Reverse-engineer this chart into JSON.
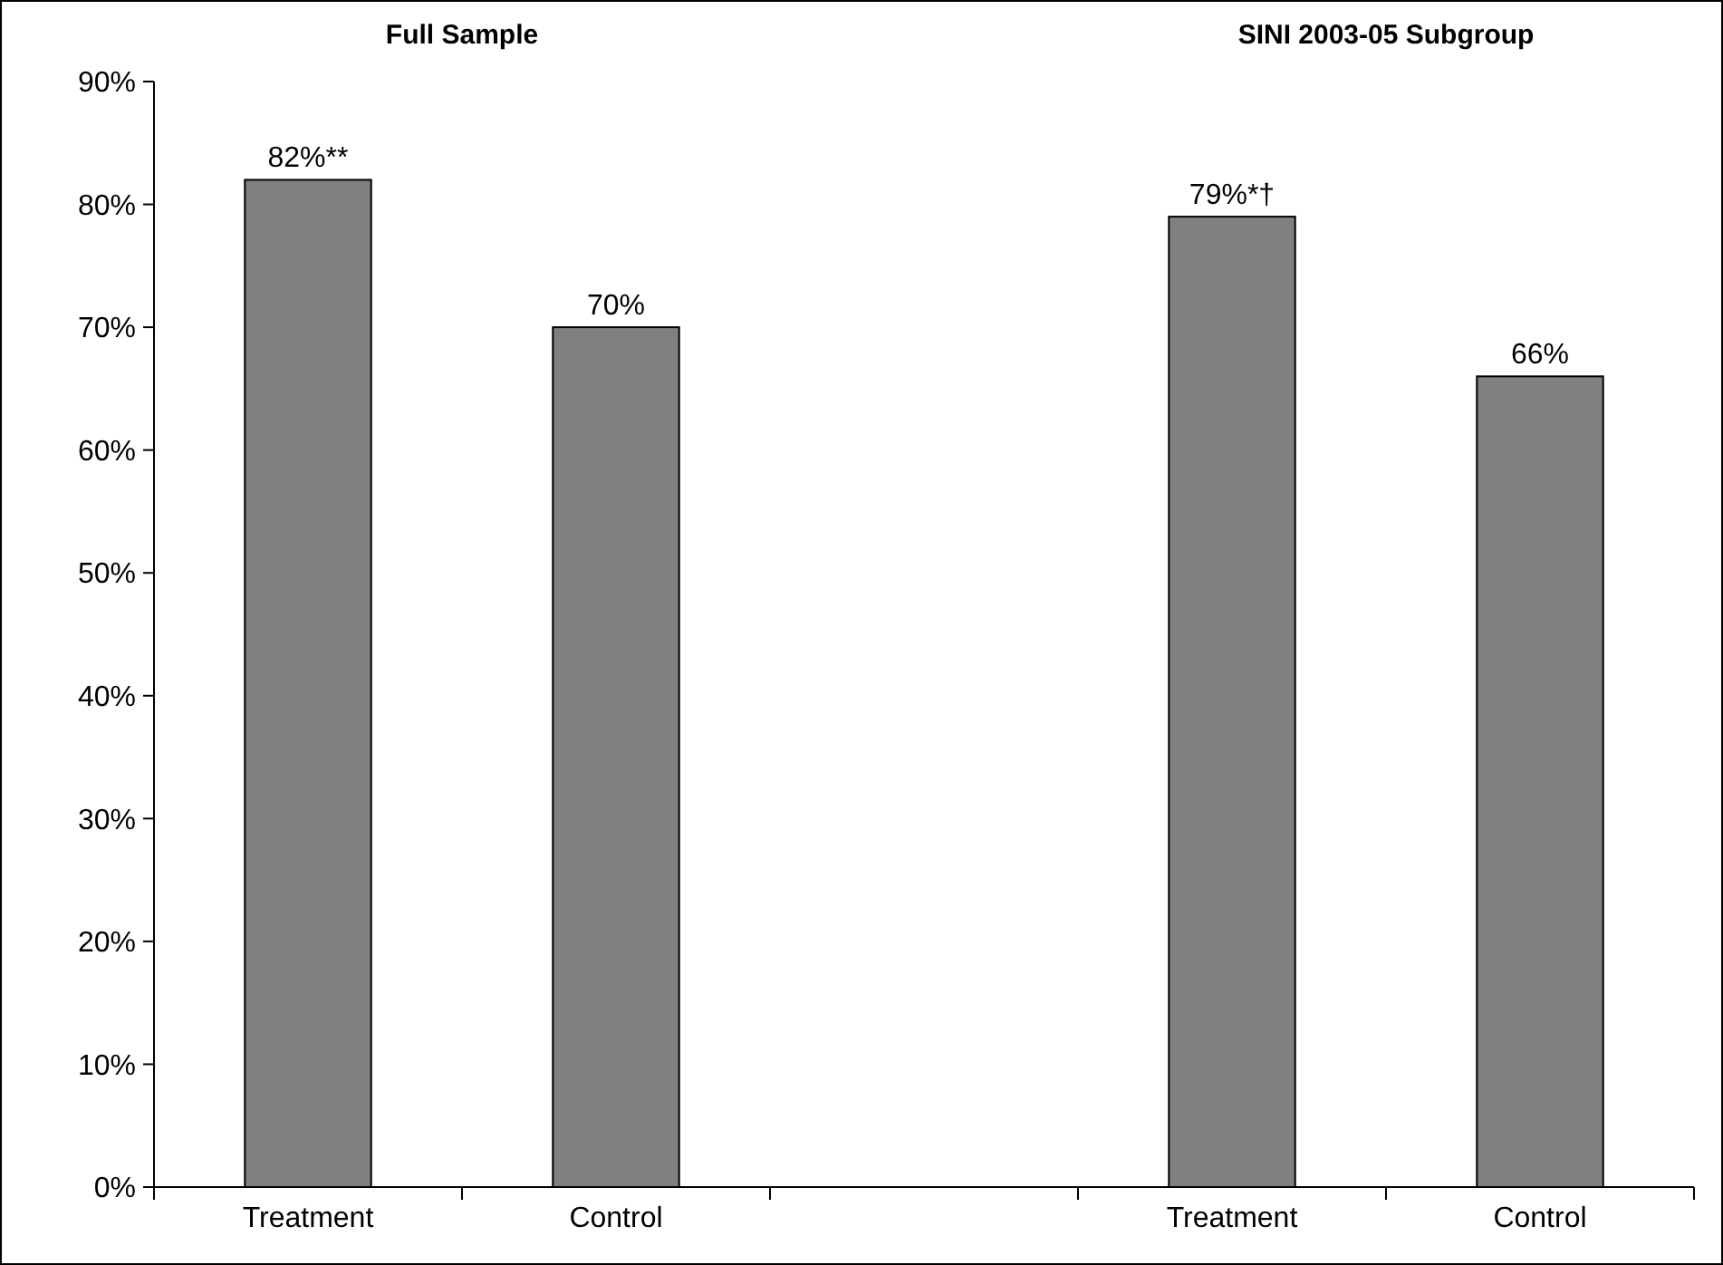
{
  "chart_data": {
    "type": "bar",
    "categories": [
      "Treatment",
      "Control",
      null,
      "Treatment",
      "Control"
    ],
    "values": [
      82,
      70,
      null,
      79,
      66
    ],
    "value_labels": [
      "82%**",
      "70%",
      null,
      "79%*†",
      "66%"
    ],
    "color": "#808080",
    "ylim": [
      0,
      90
    ],
    "yticks": [
      {
        "value": 0,
        "label": "0%"
      },
      {
        "value": 10,
        "label": "10%"
      },
      {
        "value": 20,
        "label": "20%"
      },
      {
        "value": 30,
        "label": "30%"
      },
      {
        "value": 40,
        "label": "40%"
      },
      {
        "value": 50,
        "label": "50%"
      },
      {
        "value": 60,
        "label": "60%"
      },
      {
        "value": 70,
        "label": "70%"
      },
      {
        "value": 80,
        "label": "80%"
      },
      {
        "value": 90,
        "label": "90%"
      }
    ],
    "annotations": [
      "Full Sample",
      "SINI 2003-05 Subgroup"
    ],
    "grid": false
  }
}
